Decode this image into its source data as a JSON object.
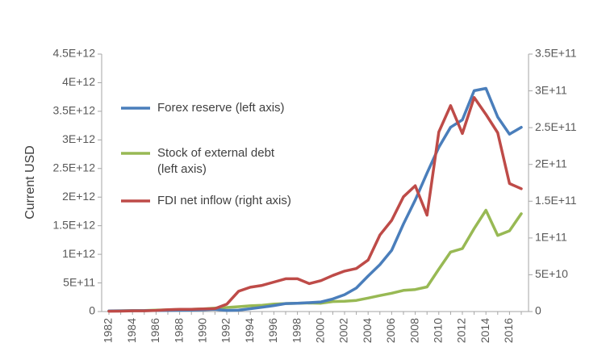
{
  "chart_data": {
    "type": "line",
    "ylabel": "Current USD",
    "x": [
      1982,
      1983,
      1984,
      1985,
      1986,
      1987,
      1988,
      1989,
      1990,
      1991,
      1992,
      1993,
      1994,
      1995,
      1996,
      1997,
      1998,
      1999,
      2000,
      2001,
      2002,
      2003,
      2004,
      2005,
      2006,
      2007,
      2008,
      2009,
      2010,
      2011,
      2012,
      2013,
      2014,
      2015,
      2016,
      2017
    ],
    "x_tick_labels": [
      "1982",
      "1984",
      "1986",
      "1988",
      "1990",
      "1992",
      "1994",
      "1996",
      "1998",
      "2000",
      "2002",
      "2004",
      "2006",
      "2008",
      "2010",
      "2012",
      "2014",
      "2016"
    ],
    "left_axis": {
      "ylim": [
        0,
        4500000000000.0
      ],
      "tick_labels": [
        "0",
        "5E+11",
        "1E+12",
        "1.5E+12",
        "2E+12",
        "2.5E+12",
        "3E+12",
        "3.5E+12",
        "4E+12",
        "4.5E+12"
      ]
    },
    "right_axis": {
      "ylim": [
        0,
        350000000000.0
      ],
      "tick_labels": [
        "0",
        "5E+10",
        "1E+11",
        "1.5E+11",
        "2E+11",
        "2.5E+11",
        "3E+11",
        "3.5E+11"
      ]
    },
    "series": [
      {
        "name": "Forex reserve (left axis)",
        "axis": "left",
        "color": "#4a7ebb",
        "values": [
          10000000000.0,
          12000000000.0,
          15000000000.0,
          16000000000.0,
          18000000000.0,
          20000000000.0,
          22000000000.0,
          25000000000.0,
          30000000000.0,
          40000000000.0,
          20000000000.0,
          25000000000.0,
          50000000000.0,
          75000000000.0,
          105000000000.0,
          140000000000.0,
          145000000000.0,
          155000000000.0,
          168000000000.0,
          220000000000.0,
          295000000000.0,
          410000000000.0,
          620000000000.0,
          820000000000.0,
          1070000000000.0,
          1530000000000.0,
          1950000000000.0,
          2420000000000.0,
          2870000000000.0,
          3220000000000.0,
          3350000000000.0,
          3860000000000.0,
          3900000000000.0,
          3400000000000.0,
          3100000000000.0,
          3220000000000.0
        ]
      },
      {
        "name": "Stock of external debt\n(left axis)",
        "axis": "left",
        "color": "#98b954",
        "values": [
          10000000000.0,
          12000000000.0,
          15000000000.0,
          17000000000.0,
          25000000000.0,
          30000000000.0,
          35000000000.0,
          40000000000.0,
          45000000000.0,
          60000000000.0,
          70000000000.0,
          85000000000.0,
          100000000000.0,
          110000000000.0,
          130000000000.0,
          140000000000.0,
          145000000000.0,
          150000000000.0,
          145000000000.0,
          175000000000.0,
          180000000000.0,
          195000000000.0,
          235000000000.0,
          280000000000.0,
          320000000000.0,
          370000000000.0,
          385000000000.0,
          430000000000.0,
          740000000000.0,
          1040000000000.0,
          1100000000000.0,
          1450000000000.0,
          1770000000000.0,
          1330000000000.0,
          1410000000000.0,
          1710000000000.0
        ]
      },
      {
        "name": "FDI net inflow (right axis)",
        "axis": "right",
        "color": "#be4b48",
        "values": [
          400000000.0,
          500000000.0,
          1000000000.0,
          1000000000.0,
          1500000000.0,
          2500000000.0,
          3000000000.0,
          3000000000.0,
          3500000000.0,
          4000000000.0,
          10000000000.0,
          27500000000.0,
          33000000000.0,
          35500000000.0,
          40000000000.0,
          44500000000.0,
          44500000000.0,
          38000000000.0,
          42000000000.0,
          49000000000.0,
          55000000000.0,
          58500000000.0,
          70000000000.0,
          104000000000.0,
          124000000000.0,
          156000000000.0,
          171000000000.0,
          131000000000.0,
          244000000000.0,
          280000000000.0,
          242000000000.0,
          291000000000.0,
          268000000000.0,
          243000000000.0,
          174000000000.0,
          167000000000.0
        ]
      }
    ]
  }
}
